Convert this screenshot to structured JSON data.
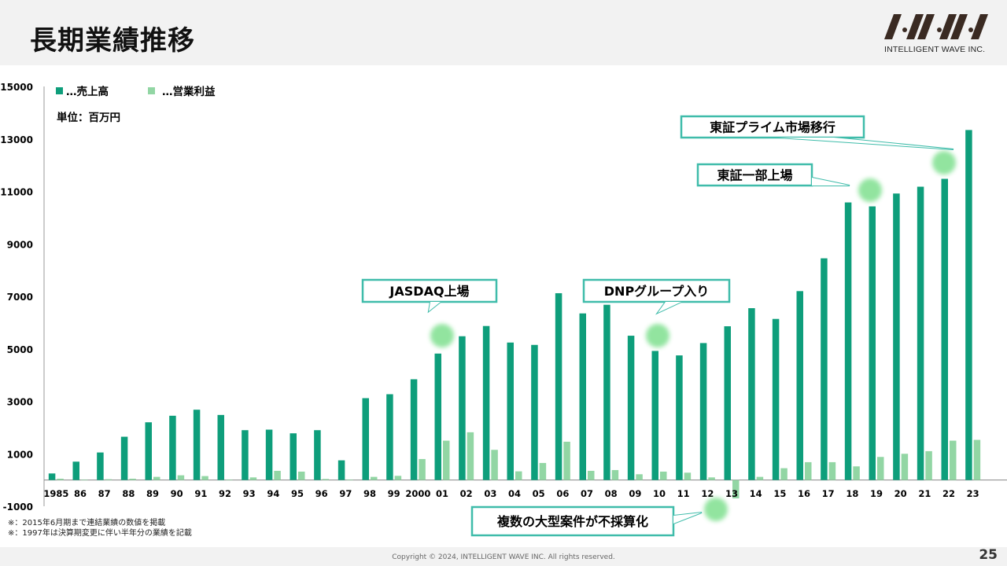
{
  "header": {
    "title": "長期業績推移"
  },
  "logo": {
    "company": "INTELLIGENT WAVE INC."
  },
  "footer": {
    "copyright": "Copyright © 2024, INTELLIGENT WAVE INC. All rights reserved.",
    "page": "25"
  },
  "notes": [
    "※：2015年6月期まで連結業績の数値を掲載",
    "※：1997年は決算期変更に伴い半年分の業績を記載"
  ],
  "colors": {
    "sales": "#0e9e7b",
    "profit": "#92d6a4",
    "callout_border": "#3fbcaa",
    "highlight": "#7fe08f"
  },
  "chart_data": {
    "type": "bar",
    "unit_label": "単位：百万円",
    "categories": [
      "1985",
      "86",
      "87",
      "88",
      "89",
      "90",
      "91",
      "92",
      "93",
      "94",
      "95",
      "96",
      "97",
      "98",
      "99",
      "2000",
      "01",
      "02",
      "03",
      "04",
      "05",
      "06",
      "07",
      "08",
      "09",
      "10",
      "11",
      "12",
      "13",
      "14",
      "15",
      "16",
      "17",
      "18",
      "19",
      "20",
      "21",
      "22",
      "23"
    ],
    "series": [
      {
        "name": "…売上高",
        "values": [
          250,
          700,
          1050,
          1650,
          2200,
          2450,
          2680,
          2480,
          1900,
          1920,
          1780,
          1900,
          750,
          3120,
          3270,
          3840,
          4820,
          5480,
          5870,
          5240,
          5150,
          7120,
          6350,
          6680,
          5500,
          4920,
          4750,
          5220,
          5860,
          6550,
          6140,
          7200,
          8450,
          10580,
          10430,
          10920,
          11180,
          11480,
          13340
        ]
      },
      {
        "name": "…営業利益",
        "values": [
          50,
          20,
          30,
          50,
          120,
          180,
          150,
          20,
          100,
          350,
          320,
          40,
          20,
          120,
          160,
          800,
          1500,
          1820,
          1150,
          330,
          650,
          1460,
          350,
          380,
          220,
          320,
          280,
          100,
          -700,
          120,
          450,
          680,
          680,
          520,
          880,
          1000,
          1100,
          1500,
          1530
        ]
      }
    ],
    "ylim": [
      -1000,
      15000
    ],
    "yticks": [
      -1000,
      1000,
      3000,
      5000,
      7000,
      9000,
      11000,
      13000,
      15000
    ],
    "legend_position": "top-left",
    "annotations": [
      {
        "text": "JASDAQ上場",
        "category": "01"
      },
      {
        "text": "DNPグループ入り",
        "category": "10"
      },
      {
        "text": "東証一部上場",
        "category": "19"
      },
      {
        "text": "東証プライム市場移行",
        "category": "22"
      },
      {
        "text": "複数の大型案件が不採算化",
        "category": "13"
      }
    ]
  }
}
